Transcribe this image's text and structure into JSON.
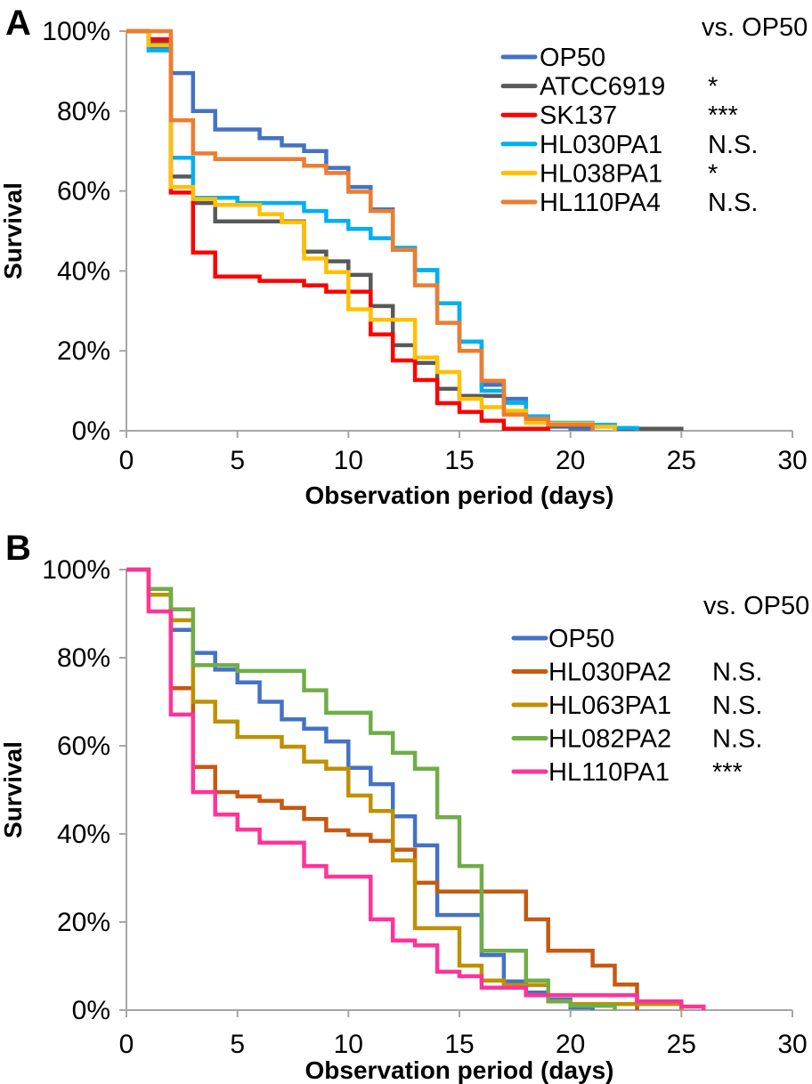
{
  "chart_data": [
    {
      "type": "line",
      "panel_label": "A",
      "subtype": "kaplan-meier-step",
      "xlabel": "Observation period (days)",
      "ylabel": "Survival",
      "legend_header": "vs. OP50",
      "xlim": [
        0,
        30
      ],
      "ylim": [
        0,
        100
      ],
      "x_ticks": [
        0,
        5,
        10,
        15,
        20,
        25,
        30
      ],
      "y_ticks": [
        100,
        80,
        60,
        40,
        20,
        0
      ],
      "y_tick_labels": [
        "100%",
        "80%",
        "60%",
        "40%",
        "20%",
        "0%"
      ],
      "grid": "off",
      "legend_position": "upper-right",
      "series": [
        {
          "name": "OP50",
          "color": "#4472C4",
          "significance": "",
          "points": [
            [
              0,
              100
            ],
            [
              1,
              96
            ],
            [
              2,
              89.5
            ],
            [
              3,
              80
            ],
            [
              4,
              75.4
            ],
            [
              6,
              73.2
            ],
            [
              7,
              71.4
            ],
            [
              8,
              70
            ],
            [
              9,
              65.8
            ],
            [
              10,
              61
            ],
            [
              11,
              55.4
            ],
            [
              12,
              45.3
            ],
            [
              13,
              40.2
            ],
            [
              14,
              31.9
            ],
            [
              15,
              22.3
            ],
            [
              16,
              11.5
            ],
            [
              17,
              8
            ],
            [
              18,
              3.6
            ],
            [
              19,
              1
            ],
            [
              20,
              0.5
            ],
            [
              21,
              0
            ]
          ]
        },
        {
          "name": "ATCC6919",
          "color": "#595959",
          "significance": "*",
          "points": [
            [
              0,
              100
            ],
            [
              1,
              97.5
            ],
            [
              2,
              63.6
            ],
            [
              3,
              57
            ],
            [
              4,
              52.4
            ],
            [
              8,
              44.8
            ],
            [
              9,
              42.4
            ],
            [
              10,
              39
            ],
            [
              11,
              31.2
            ],
            [
              12,
              21.4
            ],
            [
              13,
              17
            ],
            [
              14,
              10.5
            ],
            [
              15,
              8.7
            ],
            [
              17,
              4.5
            ],
            [
              18,
              3
            ],
            [
              19,
              1.3
            ],
            [
              22,
              0.5
            ],
            [
              25,
              0
            ]
          ]
        },
        {
          "name": "SK137",
          "color": "#FF0000",
          "significance": "***",
          "points": [
            [
              0,
              100
            ],
            [
              1,
              98
            ],
            [
              2,
              59.6
            ],
            [
              3,
              44.6
            ],
            [
              4,
              38.6
            ],
            [
              6,
              37.5
            ],
            [
              8,
              36.4
            ],
            [
              9,
              34.8
            ],
            [
              11,
              24.1
            ],
            [
              12,
              17.6
            ],
            [
              13,
              12.7
            ],
            [
              14,
              6.9
            ],
            [
              15,
              4.7
            ],
            [
              16,
              2.5
            ],
            [
              17,
              0.5
            ],
            [
              19,
              0
            ]
          ]
        },
        {
          "name": "HL030PA1",
          "color": "#00B0F0",
          "significance": "N.S.",
          "points": [
            [
              0,
              100
            ],
            [
              1,
              95.2
            ],
            [
              2,
              68.3
            ],
            [
              3,
              58.3
            ],
            [
              5,
              57
            ],
            [
              8,
              55
            ],
            [
              9,
              52.5
            ],
            [
              10,
              50.5
            ],
            [
              11,
              48.2
            ],
            [
              12,
              45.8
            ],
            [
              13,
              40.2
            ],
            [
              14,
              31.9
            ],
            [
              15,
              22.3
            ],
            [
              16,
              10
            ],
            [
              17,
              7
            ],
            [
              18,
              3.6
            ],
            [
              19,
              2
            ],
            [
              21,
              1.5
            ],
            [
              22,
              0.7
            ],
            [
              23,
              0
            ]
          ]
        },
        {
          "name": "HL038PA1",
          "color": "#FFC000",
          "significance": "*",
          "points": [
            [
              0,
              100
            ],
            [
              1,
              96.5
            ],
            [
              2,
              61
            ],
            [
              3,
              58
            ],
            [
              4,
              56.5
            ],
            [
              6,
              54.2
            ],
            [
              7,
              52.2
            ],
            [
              8,
              43.1
            ],
            [
              9,
              39.7
            ],
            [
              10,
              30.4
            ],
            [
              11,
              27.8
            ],
            [
              13,
              18.3
            ],
            [
              14,
              14.7
            ],
            [
              15,
              8
            ],
            [
              16,
              5.9
            ],
            [
              17,
              5
            ],
            [
              18,
              2
            ],
            [
              19,
              1.8
            ],
            [
              21,
              1
            ],
            [
              22,
              0
            ]
          ]
        },
        {
          "name": "HL110PA4",
          "color": "#ED7D31",
          "significance": "N.S.",
          "points": [
            [
              0,
              100
            ],
            [
              2,
              77.7
            ],
            [
              3,
              69.4
            ],
            [
              4,
              68
            ],
            [
              8,
              66.3
            ],
            [
              9,
              64.5
            ],
            [
              10,
              59.8
            ],
            [
              11,
              55
            ],
            [
              12,
              45.3
            ],
            [
              13,
              36.4
            ],
            [
              14,
              27
            ],
            [
              15,
              20
            ],
            [
              16,
              12.5
            ],
            [
              17,
              4
            ],
            [
              18,
              3
            ],
            [
              19,
              1.5
            ],
            [
              21,
              0
            ]
          ]
        }
      ]
    },
    {
      "type": "line",
      "panel_label": "B",
      "subtype": "kaplan-meier-step",
      "xlabel": "Observation period (days)",
      "ylabel": "Survival",
      "legend_header": "vs. OP50",
      "xlim": [
        0,
        30
      ],
      "ylim": [
        0,
        100
      ],
      "x_ticks": [
        0,
        5,
        10,
        15,
        20,
        25,
        30
      ],
      "y_ticks": [
        100,
        80,
        60,
        40,
        20,
        0
      ],
      "y_tick_labels": [
        "100%",
        "80%",
        "60%",
        "40%",
        "20%",
        "0%"
      ],
      "grid": "off",
      "legend_position": "upper-right",
      "series": [
        {
          "name": "OP50",
          "color": "#4472C4",
          "significance": "",
          "points": [
            [
              0,
              100
            ],
            [
              1,
              95.6
            ],
            [
              2,
              86.3
            ],
            [
              3,
              81.1
            ],
            [
              4,
              77.3
            ],
            [
              5,
              74.4
            ],
            [
              6,
              70
            ],
            [
              7,
              66
            ],
            [
              8,
              63.9
            ],
            [
              9,
              61
            ],
            [
              10,
              55
            ],
            [
              11,
              51.3
            ],
            [
              12,
              44
            ],
            [
              13,
              37.4
            ],
            [
              14,
              21.6
            ],
            [
              16,
              12.5
            ],
            [
              17,
              6.5
            ],
            [
              18,
              4
            ],
            [
              19,
              2.4
            ],
            [
              20,
              0.6
            ],
            [
              21,
              0
            ]
          ]
        },
        {
          "name": "HL030PA2",
          "color": "#C55A11",
          "significance": "N.S.",
          "points": [
            [
              0,
              100
            ],
            [
              1,
              94.3
            ],
            [
              2,
              73.1
            ],
            [
              3,
              55.2
            ],
            [
              4,
              49.5
            ],
            [
              5,
              48.5
            ],
            [
              6,
              47.5
            ],
            [
              7,
              45.9
            ],
            [
              8,
              43.4
            ],
            [
              9,
              40.8
            ],
            [
              10,
              39.8
            ],
            [
              11,
              38.4
            ],
            [
              12,
              36.4
            ],
            [
              13,
              28.9
            ],
            [
              14,
              26.9
            ],
            [
              18,
              20.6
            ],
            [
              19,
              13.5
            ],
            [
              21,
              10.1
            ],
            [
              22,
              5.8
            ],
            [
              23,
              0
            ]
          ]
        },
        {
          "name": "HL063PA1",
          "color": "#BF9000",
          "significance": "N.S.",
          "points": [
            [
              0,
              100
            ],
            [
              1,
              94.3
            ],
            [
              2,
              88.5
            ],
            [
              3,
              70
            ],
            [
              4,
              65.5
            ],
            [
              5,
              62
            ],
            [
              7,
              59.8
            ],
            [
              8,
              56.4
            ],
            [
              9,
              54.8
            ],
            [
              10,
              48.7
            ],
            [
              11,
              45.2
            ],
            [
              12,
              34
            ],
            [
              13,
              18.6
            ],
            [
              15,
              10.1
            ],
            [
              16,
              6.7
            ],
            [
              17,
              5.7
            ],
            [
              19,
              2
            ],
            [
              20,
              1.4
            ],
            [
              25,
              0
            ]
          ]
        },
        {
          "name": "HL082PA2",
          "color": "#70AD47",
          "significance": "N.S.",
          "points": [
            [
              0,
              100
            ],
            [
              1,
              95.6
            ],
            [
              2,
              91
            ],
            [
              3,
              78.3
            ],
            [
              5,
              77
            ],
            [
              8,
              72.6
            ],
            [
              9,
              67.5
            ],
            [
              11,
              62.9
            ],
            [
              12,
              58.4
            ],
            [
              13,
              54.8
            ],
            [
              14,
              43.8
            ],
            [
              15,
              32.7
            ],
            [
              16,
              13.5
            ],
            [
              18,
              6.7
            ],
            [
              19,
              2
            ],
            [
              20,
              1
            ],
            [
              22,
              0
            ]
          ]
        },
        {
          "name": "HL110PA1",
          "color": "#FF3399",
          "significance": "***",
          "points": [
            [
              0,
              100
            ],
            [
              1,
              90.5
            ],
            [
              2,
              67.1
            ],
            [
              3,
              49.5
            ],
            [
              4,
              44.4
            ],
            [
              5,
              41
            ],
            [
              6,
              38
            ],
            [
              8,
              32.7
            ],
            [
              9,
              30.3
            ],
            [
              11,
              20.6
            ],
            [
              12,
              15.8
            ],
            [
              13,
              14.7
            ],
            [
              14,
              8.7
            ],
            [
              15,
              7.7
            ],
            [
              16,
              5.1
            ],
            [
              18,
              3.4
            ],
            [
              23,
              2
            ],
            [
              25,
              0.8
            ],
            [
              26,
              0
            ]
          ]
        }
      ]
    }
  ],
  "axis_color": "#A6A6A6"
}
